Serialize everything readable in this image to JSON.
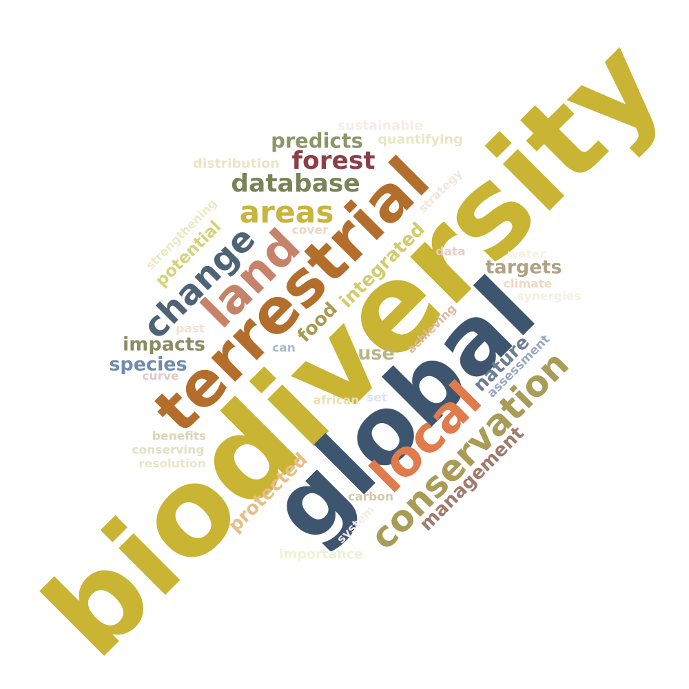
{
  "word_cloud": {
    "words": [
      {
        "id": "biodiversity",
        "text": "biodiversity",
        "color": "#c9b434"
      },
      {
        "id": "global",
        "text": "global",
        "color": "#3e5570"
      },
      {
        "id": "terrestrial",
        "text": "terrestrial",
        "color": "#b36e2c"
      },
      {
        "id": "land",
        "text": "land",
        "color": "#c7826a"
      },
      {
        "id": "local",
        "text": "local",
        "color": "#e07b4b"
      },
      {
        "id": "conservation",
        "text": "conservation",
        "color": "#a89c56"
      },
      {
        "id": "change",
        "text": "change",
        "color": "#4f6377"
      },
      {
        "id": "areas",
        "text": "areas",
        "color": "#c9b43e"
      },
      {
        "id": "database",
        "text": "database",
        "color": "#7a8257"
      },
      {
        "id": "forest",
        "text": "forest",
        "color": "#8c3f47"
      },
      {
        "id": "predicts",
        "text": "predicts",
        "color": "#8c9668"
      },
      {
        "id": "integrated",
        "text": "integrated",
        "color": "#d3cc6c"
      },
      {
        "id": "food",
        "text": "food",
        "color": "#a89b52"
      },
      {
        "id": "management",
        "text": "management",
        "color": "#a07a6c"
      },
      {
        "id": "protected",
        "text": "protected",
        "color": "#e7be86"
      },
      {
        "id": "nature",
        "text": "nature",
        "color": "#6c7f91"
      },
      {
        "id": "targets",
        "text": "targets",
        "color": "#b0a384"
      },
      {
        "id": "impacts",
        "text": "impacts",
        "color": "#8a8c62"
      },
      {
        "id": "species",
        "text": "species",
        "color": "#6f8cb0"
      },
      {
        "id": "potential",
        "text": "potential",
        "color": "#d7d17a"
      },
      {
        "id": "use",
        "text": "use",
        "color": "#b6b786"
      },
      {
        "id": "assessment",
        "text": "assessment",
        "color": "#9aaabd"
      },
      {
        "id": "achieving",
        "text": "achieving",
        "color": "#e2b8a0"
      },
      {
        "id": "strengthening",
        "text": "strengthening",
        "color": "#ede9c6"
      },
      {
        "id": "sustainable",
        "text": "sustainable",
        "color": "#f7ece6"
      },
      {
        "id": "quantifying",
        "text": "quantifying",
        "color": "#ebe6c3"
      },
      {
        "id": "distribution",
        "text": "distribution",
        "color": "#ebe4c3"
      },
      {
        "id": "strategy",
        "text": "strategy",
        "color": "#f1e7dd"
      },
      {
        "id": "cover",
        "text": "cover",
        "color": "#ead8c5"
      },
      {
        "id": "data",
        "text": "data",
        "color": "#e8ccc8"
      },
      {
        "id": "water",
        "text": "water",
        "color": "#f5f1e3"
      },
      {
        "id": "climate",
        "text": "climate",
        "color": "#eed8c3"
      },
      {
        "id": "synergies",
        "text": "synergies",
        "color": "#f5f0e3"
      },
      {
        "id": "past",
        "text": "past",
        "color": "#ede3d2"
      },
      {
        "id": "can",
        "text": "can",
        "color": "#a9bccb"
      },
      {
        "id": "curve",
        "text": "curve",
        "color": "#e3c8c6"
      },
      {
        "id": "african",
        "text": "african",
        "color": "#ece0af"
      },
      {
        "id": "set",
        "text": "set",
        "color": "#dce3ea"
      },
      {
        "id": "benefits",
        "text": "benefits",
        "color": "#ddd4b8"
      },
      {
        "id": "conserving",
        "text": "conserving",
        "color": "#e5dfc6"
      },
      {
        "id": "resolution",
        "text": "resolution",
        "color": "#ebe4cc"
      },
      {
        "id": "carbon",
        "text": "carbon",
        "color": "#d2caa6"
      },
      {
        "id": "system",
        "text": "system",
        "color": "#f6ecec"
      },
      {
        "id": "importance",
        "text": "importance",
        "color": "#eef2d2"
      }
    ]
  }
}
